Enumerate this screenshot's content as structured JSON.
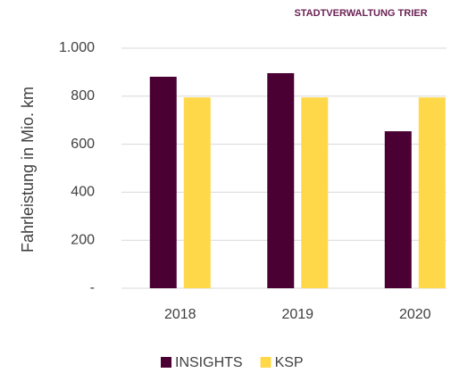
{
  "chart_data": {
    "type": "bar",
    "title": "STADTVERWALTUNG TRIER",
    "y_label": "Fahrleistung in Mio. km",
    "categories": [
      "2018",
      "2019",
      "2020"
    ],
    "series": [
      {
        "name": "INSIGHTS",
        "color": "#4a0033",
        "values": [
          881,
          896,
          654
        ]
      },
      {
        "name": "KSP",
        "color": "#ffd84a",
        "values": [
          795,
          795,
          795
        ]
      }
    ],
    "ylim": [
      0,
      1000
    ],
    "yticks": [
      {
        "value": 0,
        "label": "-"
      },
      200,
      400,
      600,
      800,
      {
        "value": 1000,
        "label": "1.000"
      }
    ],
    "grid": true
  }
}
